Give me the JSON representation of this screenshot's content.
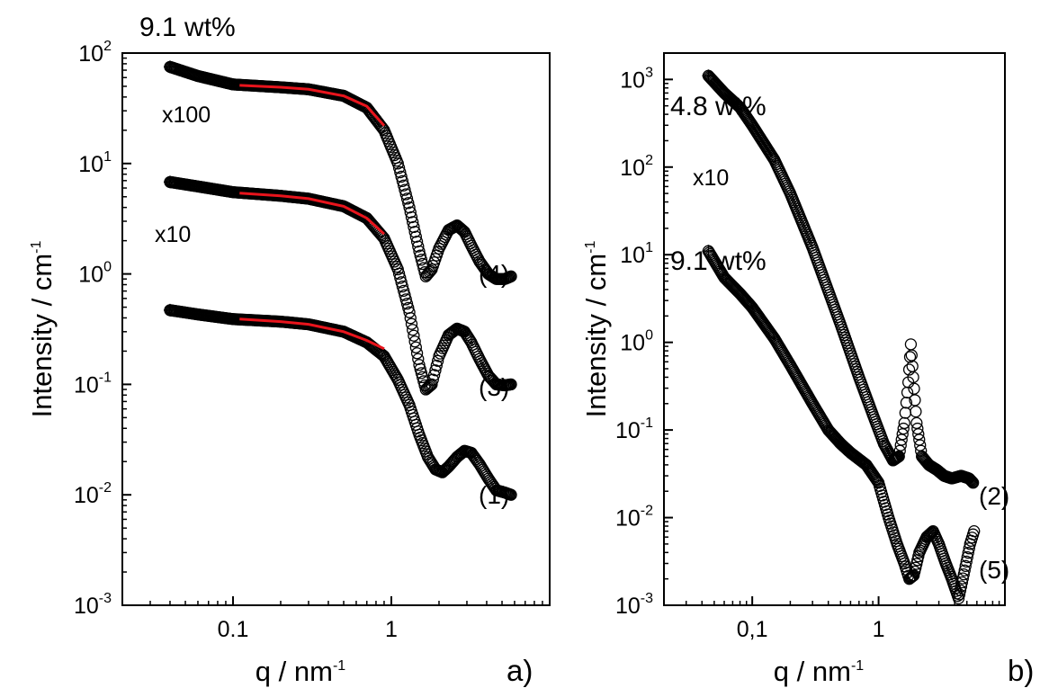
{
  "chart_data": [
    {
      "type": "scatter",
      "panel": "a)",
      "title": "9.1 wt%",
      "xlabel": "q / nm",
      "xlabel_exp": "-1",
      "ylabel": "Intensity / cm",
      "ylabel_exp": "-1",
      "xscale": "log",
      "yscale": "log",
      "xlim": [
        0.02,
        10
      ],
      "ylim": [
        0.001,
        100
      ],
      "x_ticks": [
        {
          "value": 0.1,
          "label": "0.1"
        },
        {
          "value": 1,
          "label": "1"
        }
      ],
      "y_ticks": [
        {
          "value": 0.001,
          "base": "10",
          "exp": "-3"
        },
        {
          "value": 0.01,
          "base": "10",
          "exp": "-2"
        },
        {
          "value": 0.1,
          "base": "10",
          "exp": "-1"
        },
        {
          "value": 1,
          "base": "10",
          "exp": "0"
        },
        {
          "value": 10,
          "base": "10",
          "exp": "1"
        },
        {
          "value": 100,
          "base": "10",
          "exp": "2"
        }
      ],
      "marker": "open-circle",
      "fit_color": "#e8141c",
      "series": [
        {
          "name": "(1)",
          "points": [
            [
              0.04,
              0.47
            ],
            [
              0.06,
              0.43
            ],
            [
              0.1,
              0.39
            ],
            [
              0.2,
              0.37
            ],
            [
              0.3,
              0.35
            ],
            [
              0.5,
              0.3
            ],
            [
              0.7,
              0.24
            ],
            [
              0.9,
              0.18
            ],
            [
              1.1,
              0.11
            ],
            [
              1.3,
              0.065
            ],
            [
              1.5,
              0.035
            ],
            [
              1.7,
              0.022
            ],
            [
              1.9,
              0.017
            ],
            [
              2.1,
              0.016
            ],
            [
              2.3,
              0.018
            ],
            [
              2.6,
              0.022
            ],
            [
              2.9,
              0.025
            ],
            [
              3.2,
              0.024
            ],
            [
              3.6,
              0.019
            ],
            [
              4.1,
              0.014
            ],
            [
              4.6,
              0.011
            ],
            [
              5.2,
              0.0105
            ],
            [
              5.7,
              0.01
            ]
          ],
          "fit": [
            [
              0.11,
              0.39
            ],
            [
              0.2,
              0.37
            ],
            [
              0.3,
              0.35
            ],
            [
              0.5,
              0.3
            ],
            [
              0.7,
              0.25
            ],
            [
              0.9,
              0.21
            ]
          ]
        },
        {
          "name": "(3)",
          "annotation": "x10",
          "points": [
            [
              0.04,
              6.8
            ],
            [
              0.06,
              6.2
            ],
            [
              0.1,
              5.5
            ],
            [
              0.2,
              5.1
            ],
            [
              0.3,
              4.8
            ],
            [
              0.5,
              4.1
            ],
            [
              0.7,
              3.2
            ],
            [
              0.9,
              2.1
            ],
            [
              1.1,
              1.1
            ],
            [
              1.3,
              0.45
            ],
            [
              1.5,
              0.15
            ],
            [
              1.65,
              0.09
            ],
            [
              1.8,
              0.1
            ],
            [
              2.0,
              0.18
            ],
            [
              2.3,
              0.28
            ],
            [
              2.6,
              0.32
            ],
            [
              2.9,
              0.3
            ],
            [
              3.2,
              0.24
            ],
            [
              3.6,
              0.17
            ],
            [
              4.1,
              0.12
            ],
            [
              4.6,
              0.1
            ],
            [
              5.2,
              0.098
            ],
            [
              5.7,
              0.1
            ]
          ],
          "fit": [
            [
              0.11,
              5.4
            ],
            [
              0.2,
              5.1
            ],
            [
              0.3,
              4.8
            ],
            [
              0.5,
              4.1
            ],
            [
              0.7,
              3.2
            ],
            [
              0.9,
              2.3
            ]
          ]
        },
        {
          "name": "(4)",
          "annotation": "x100",
          "points": [
            [
              0.04,
              75
            ],
            [
              0.06,
              62
            ],
            [
              0.1,
              52
            ],
            [
              0.2,
              49
            ],
            [
              0.3,
              47
            ],
            [
              0.5,
              41
            ],
            [
              0.7,
              32
            ],
            [
              0.9,
              20
            ],
            [
              1.1,
              10
            ],
            [
              1.3,
              4
            ],
            [
              1.5,
              1.6
            ],
            [
              1.65,
              0.95
            ],
            [
              1.8,
              1.1
            ],
            [
              2.0,
              1.7
            ],
            [
              2.3,
              2.5
            ],
            [
              2.6,
              2.75
            ],
            [
              2.9,
              2.4
            ],
            [
              3.2,
              1.8
            ],
            [
              3.6,
              1.3
            ],
            [
              4.1,
              1.0
            ],
            [
              4.6,
              0.9
            ],
            [
              5.2,
              0.9
            ],
            [
              5.7,
              0.95
            ]
          ],
          "fit": [
            [
              0.11,
              51
            ],
            [
              0.2,
              49
            ],
            [
              0.3,
              47
            ],
            [
              0.5,
              41
            ],
            [
              0.7,
              33
            ],
            [
              0.9,
              22
            ]
          ]
        }
      ]
    },
    {
      "type": "scatter",
      "panel": "b)",
      "title": "",
      "xlabel": "q / nm",
      "xlabel_exp": "-1",
      "ylabel": "Intensity / cm",
      "ylabel_exp": "-1",
      "xscale": "log",
      "yscale": "log",
      "xlim": [
        0.02,
        10
      ],
      "ylim": [
        0.001,
        2000
      ],
      "x_ticks": [
        {
          "value": 0.1,
          "label": "0,1"
        },
        {
          "value": 1,
          "label": "1"
        }
      ],
      "y_ticks": [
        {
          "value": 0.001,
          "base": "10",
          "exp": "-3"
        },
        {
          "value": 0.01,
          "base": "10",
          "exp": "-2"
        },
        {
          "value": 0.1,
          "base": "10",
          "exp": "-1"
        },
        {
          "value": 1,
          "base": "10",
          "exp": "0"
        },
        {
          "value": 10,
          "base": "10",
          "exp": "1"
        },
        {
          "value": 100,
          "base": "10",
          "exp": "2"
        },
        {
          "value": 1000,
          "base": "10",
          "exp": "3"
        }
      ],
      "marker": "open-circle",
      "series": [
        {
          "name": "(2)",
          "label_top": "4.8 wt%",
          "annotation": "x10",
          "points": [
            [
              0.045,
              1100
            ],
            [
              0.06,
              700
            ],
            [
              0.08,
              480
            ],
            [
              0.1,
              300
            ],
            [
              0.15,
              120
            ],
            [
              0.2,
              50
            ],
            [
              0.3,
              12
            ],
            [
              0.5,
              1.6
            ],
            [
              0.7,
              0.4
            ],
            [
              0.9,
              0.15
            ],
            [
              1.1,
              0.07
            ],
            [
              1.3,
              0.045
            ],
            [
              1.45,
              0.05
            ],
            [
              1.6,
              0.12
            ],
            [
              1.72,
              0.35
            ],
            [
              1.8,
              0.95
            ],
            [
              1.88,
              0.4
            ],
            [
              2.0,
              0.12
            ],
            [
              2.2,
              0.05
            ],
            [
              2.5,
              0.04
            ],
            [
              2.9,
              0.035
            ],
            [
              3.3,
              0.03
            ],
            [
              3.8,
              0.028
            ],
            [
              4.5,
              0.03
            ],
            [
              5.2,
              0.028
            ],
            [
              5.6,
              0.025
            ]
          ]
        },
        {
          "name": "(5)",
          "label_top": "9.1 wt%",
          "points": [
            [
              0.045,
              11
            ],
            [
              0.06,
              5.5
            ],
            [
              0.08,
              3.6
            ],
            [
              0.1,
              2.5
            ],
            [
              0.15,
              1.1
            ],
            [
              0.2,
              0.55
            ],
            [
              0.3,
              0.2
            ],
            [
              0.4,
              0.1
            ],
            [
              0.5,
              0.07
            ],
            [
              0.6,
              0.055
            ],
            [
              0.8,
              0.04
            ],
            [
              1.0,
              0.025
            ],
            [
              1.2,
              0.01
            ],
            [
              1.4,
              0.005
            ],
            [
              1.6,
              0.003
            ],
            [
              1.75,
              0.002
            ],
            [
              1.9,
              0.0022
            ],
            [
              2.1,
              0.004
            ],
            [
              2.4,
              0.006
            ],
            [
              2.7,
              0.007
            ],
            [
              3.0,
              0.005
            ],
            [
              3.4,
              0.003
            ],
            [
              3.8,
              0.002
            ],
            [
              4.3,
              0.0012
            ],
            [
              4.8,
              0.0025
            ],
            [
              5.3,
              0.005
            ],
            [
              5.7,
              0.007
            ]
          ]
        }
      ]
    }
  ]
}
